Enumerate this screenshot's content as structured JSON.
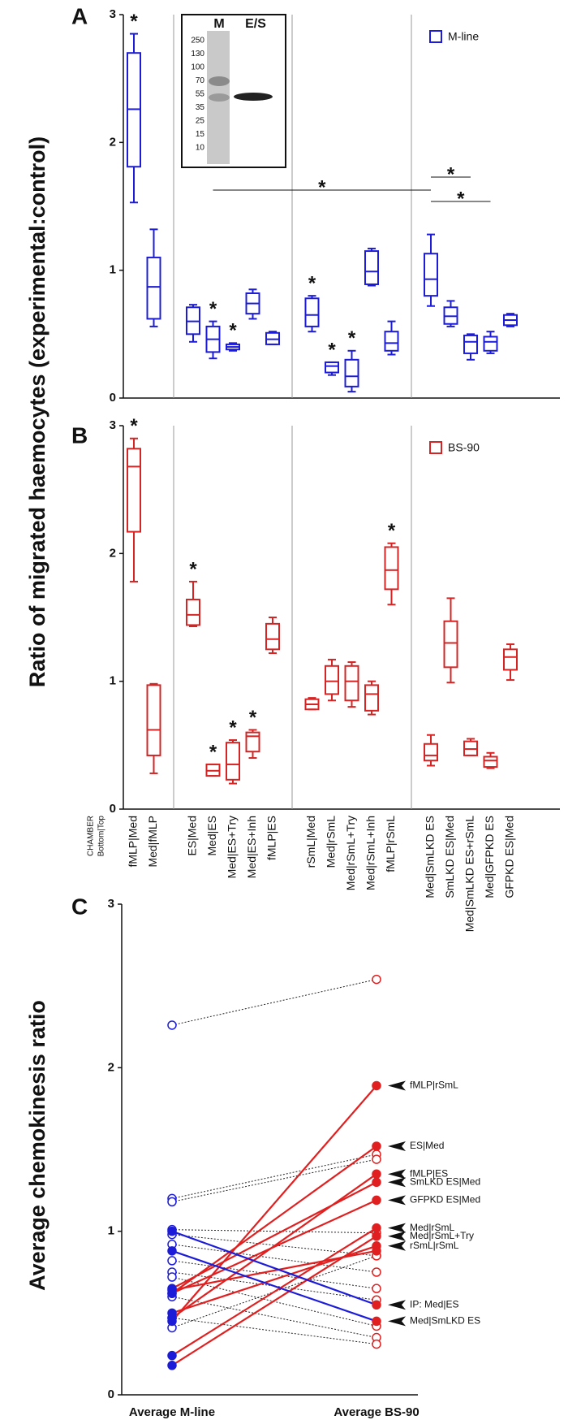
{
  "chart_data": [
    {
      "type": "box",
      "panel": "A",
      "color": "#1c1cd8",
      "ylabel": "Ratio of migrated haemocytes (experimental:control)",
      "legend": "M-line",
      "ylim": [
        0,
        3
      ],
      "yticks": [
        0,
        1,
        2,
        3
      ],
      "marker": "*",
      "boxes": [
        {
          "whislo": 1.53,
          "q1": 1.81,
          "med": 2.26,
          "q3": 2.7,
          "whishi": 2.85
        },
        {
          "whislo": 0.56,
          "q1": 0.62,
          "med": 0.87,
          "q3": 1.1,
          "whishi": 1.32
        },
        {
          "whislo": 0.44,
          "q1": 0.5,
          "med": 0.6,
          "q3": 0.71,
          "whishi": 0.73
        },
        {
          "whislo": 0.31,
          "q1": 0.36,
          "med": 0.46,
          "q3": 0.56,
          "whishi": 0.6
        },
        {
          "whislo": 0.37,
          "q1": 0.38,
          "med": 0.4,
          "q3": 0.42,
          "whishi": 0.43
        },
        {
          "whislo": 0.62,
          "q1": 0.66,
          "med": 0.74,
          "q3": 0.82,
          "whishi": 0.85
        },
        {
          "whislo": 0.42,
          "q1": 0.42,
          "med": 0.46,
          "q3": 0.51,
          "whishi": 0.52
        },
        {
          "whislo": 0.52,
          "q1": 0.56,
          "med": 0.65,
          "q3": 0.78,
          "whishi": 0.8
        },
        {
          "whislo": 0.18,
          "q1": 0.2,
          "med": 0.25,
          "q3": 0.28,
          "whishi": 0.28
        },
        {
          "whislo": 0.05,
          "q1": 0.09,
          "med": 0.17,
          "q3": 0.3,
          "whishi": 0.37
        },
        {
          "whislo": 0.88,
          "q1": 0.89,
          "med": 0.99,
          "q3": 1.15,
          "whishi": 1.17
        },
        {
          "whislo": 0.34,
          "q1": 0.37,
          "med": 0.43,
          "q3": 0.52,
          "whishi": 0.6
        },
        {
          "whislo": 0.72,
          "q1": 0.8,
          "med": 0.93,
          "q3": 1.13,
          "whishi": 1.28
        },
        {
          "whislo": 0.56,
          "q1": 0.58,
          "med": 0.64,
          "q3": 0.71,
          "whishi": 0.76
        },
        {
          "whislo": 0.3,
          "q1": 0.35,
          "med": 0.44,
          "q3": 0.49,
          "whishi": 0.5
        },
        {
          "whislo": 0.35,
          "q1": 0.37,
          "med": 0.44,
          "q3": 0.48,
          "whishi": 0.52
        },
        {
          "whislo": 0.56,
          "q1": 0.57,
          "med": 0.61,
          "q3": 0.65,
          "whishi": 0.66
        }
      ],
      "significant": [
        true,
        false,
        false,
        true,
        true,
        false,
        false,
        true,
        true,
        true,
        false,
        false,
        false,
        false,
        false,
        false,
        false
      ],
      "comparisons": [
        {
          "from": 3,
          "to": 12,
          "label": "*"
        },
        {
          "from": 12,
          "to": 14,
          "label": "*"
        },
        {
          "from": 12,
          "to": 15,
          "label": "*"
        }
      ],
      "inset": {
        "lanes": [
          "M",
          "E/S"
        ],
        "ladder": [
          "250",
          "130",
          "100",
          "70",
          "55",
          "35",
          "25",
          "15",
          "10"
        ]
      }
    },
    {
      "type": "box",
      "panel": "B",
      "color": "#d42424",
      "legend": "BS-90",
      "ylim": [
        0,
        3
      ],
      "yticks": [
        0,
        1,
        2,
        3
      ],
      "marker": "*",
      "xlabel": [
        "CHAMBER",
        "Bottom|Top"
      ],
      "categories": [
        "fMLP|Med",
        "Med|fMLP",
        "ES|Med",
        "Med|ES",
        "Med|ES+Try",
        "Med|ES+Inh",
        "fMLP|ES",
        "rSmL|Med",
        "Med|rSmL",
        "Med|rSmL+Try",
        "Med|rSmL+Inh",
        "fMLP|rSmL",
        "Med|SmLKD ES",
        "SmLKD ES|Med",
        "Med|SmLKD ES+rSmL",
        "Med|GFPKD ES",
        "GFPKD ES|Med"
      ],
      "boxes": [
        {
          "whislo": 1.78,
          "q1": 2.17,
          "med": 2.68,
          "q3": 2.82,
          "whishi": 2.9
        },
        {
          "whislo": 0.28,
          "q1": 0.42,
          "med": 0.62,
          "q3": 0.97,
          "whishi": 0.98
        },
        {
          "whislo": 1.43,
          "q1": 1.44,
          "med": 1.52,
          "q3": 1.64,
          "whishi": 1.78
        },
        {
          "whislo": 0.26,
          "q1": 0.26,
          "med": 0.3,
          "q3": 0.35,
          "whishi": 0.35
        },
        {
          "whislo": 0.2,
          "q1": 0.23,
          "med": 0.35,
          "q3": 0.52,
          "whishi": 0.54
        },
        {
          "whislo": 0.4,
          "q1": 0.45,
          "med": 0.57,
          "q3": 0.6,
          "whishi": 0.62
        },
        {
          "whislo": 1.22,
          "q1": 1.25,
          "med": 1.33,
          "q3": 1.45,
          "whishi": 1.5
        },
        {
          "whislo": 0.78,
          "q1": 0.78,
          "med": 0.82,
          "q3": 0.86,
          "whishi": 0.87
        },
        {
          "whislo": 0.85,
          "q1": 0.9,
          "med": 1.0,
          "q3": 1.12,
          "whishi": 1.17
        },
        {
          "whislo": 0.8,
          "q1": 0.85,
          "med": 1.0,
          "q3": 1.12,
          "whishi": 1.15
        },
        {
          "whislo": 0.74,
          "q1": 0.77,
          "med": 0.9,
          "q3": 0.97,
          "whishi": 1.0
        },
        {
          "whislo": 1.6,
          "q1": 1.72,
          "med": 1.87,
          "q3": 2.05,
          "whishi": 2.08
        },
        {
          "whislo": 0.34,
          "q1": 0.38,
          "med": 0.42,
          "q3": 0.51,
          "whishi": 0.58
        },
        {
          "whislo": 0.99,
          "q1": 1.11,
          "med": 1.3,
          "q3": 1.47,
          "whishi": 1.65
        },
        {
          "whislo": 0.42,
          "q1": 0.42,
          "med": 0.47,
          "q3": 0.53,
          "whishi": 0.55
        },
        {
          "whislo": 0.32,
          "q1": 0.33,
          "med": 0.38,
          "q3": 0.41,
          "whishi": 0.44
        },
        {
          "whislo": 1.01,
          "q1": 1.09,
          "med": 1.19,
          "q3": 1.25,
          "whishi": 1.29
        }
      ],
      "significant": [
        true,
        false,
        true,
        true,
        true,
        true,
        false,
        false,
        false,
        false,
        false,
        true,
        false,
        false,
        false,
        false,
        false
      ]
    },
    {
      "type": "slope",
      "panel": "C",
      "ylabel": "Average chemokinesis ratio",
      "categories": [
        "Average M-line",
        "Average BS-90"
      ],
      "ylim": [
        0,
        3
      ],
      "yticks": [
        0,
        1,
        2,
        3
      ],
      "left_color": "#1c1cd8",
      "right_color": "#e02020",
      "pairs": [
        {
          "label": null,
          "values": [
            2.26,
            2.54
          ],
          "significant": false,
          "color": "#222222"
        },
        {
          "label": null,
          "values": [
            1.2,
            1.47
          ],
          "significant": false,
          "color": "#222222"
        },
        {
          "label": null,
          "values": [
            1.18,
            1.44
          ],
          "significant": false,
          "color": "#222222"
        },
        {
          "label": null,
          "values": [
            1.01,
            0.99
          ],
          "significant": false,
          "color": "#222222"
        },
        {
          "label": null,
          "values": [
            0.98,
            0.85
          ],
          "significant": false,
          "color": "#222222"
        },
        {
          "label": null,
          "values": [
            0.92,
            0.75
          ],
          "significant": false,
          "color": "#222222"
        },
        {
          "label": null,
          "values": [
            0.82,
            0.65
          ],
          "significant": false,
          "color": "#222222"
        },
        {
          "label": null,
          "values": [
            0.75,
            0.58
          ],
          "significant": false,
          "color": "#222222"
        },
        {
          "label": null,
          "values": [
            0.72,
            0.42
          ],
          "significant": false,
          "color": "#222222"
        },
        {
          "label": null,
          "values": [
            0.6,
            0.35
          ],
          "significant": false,
          "color": "#222222"
        },
        {
          "label": null,
          "values": [
            0.47,
            0.31
          ],
          "significant": false,
          "color": "#222222"
        },
        {
          "label": null,
          "values": [
            0.41,
            0.85
          ],
          "significant": false,
          "color": "#222222"
        },
        {
          "label": "fMLP|rSmL",
          "values": [
            0.45,
            1.89
          ],
          "significant": true,
          "color": "#e02020"
        },
        {
          "label": "ES|Med",
          "values": [
            0.62,
            1.52
          ],
          "significant": true,
          "color": "#e02020"
        },
        {
          "label": "fMLP|ES",
          "values": [
            0.47,
            1.35
          ],
          "significant": true,
          "color": "#e02020"
        },
        {
          "label": "SmLKD ES|Med",
          "values": [
            0.65,
            1.3
          ],
          "significant": true,
          "color": "#e02020"
        },
        {
          "label": "GFPKD ES|Med",
          "values": [
            0.62,
            1.19
          ],
          "significant": true,
          "color": "#e02020"
        },
        {
          "label": "Med|rSmL",
          "values": [
            0.24,
            1.02
          ],
          "significant": true,
          "color": "#e02020"
        },
        {
          "label": "Med|rSmL+Try",
          "values": [
            0.18,
            0.97
          ],
          "significant": true,
          "color": "#e02020"
        },
        {
          "label": "rSmL|rSmL",
          "values": [
            0.5,
            0.91
          ],
          "significant": true,
          "color": "#e02020"
        },
        {
          "label": null,
          "values": [
            0.64,
            0.88
          ],
          "significant": true,
          "color": "#e02020"
        },
        {
          "label": "IP: Med|ES",
          "values": [
            1.0,
            0.55
          ],
          "significant": true,
          "color": "#1c1cd8"
        },
        {
          "label": "Med|SmLKD ES",
          "values": [
            0.88,
            0.45
          ],
          "significant": true,
          "color": "#1c1cd8"
        }
      ]
    }
  ]
}
